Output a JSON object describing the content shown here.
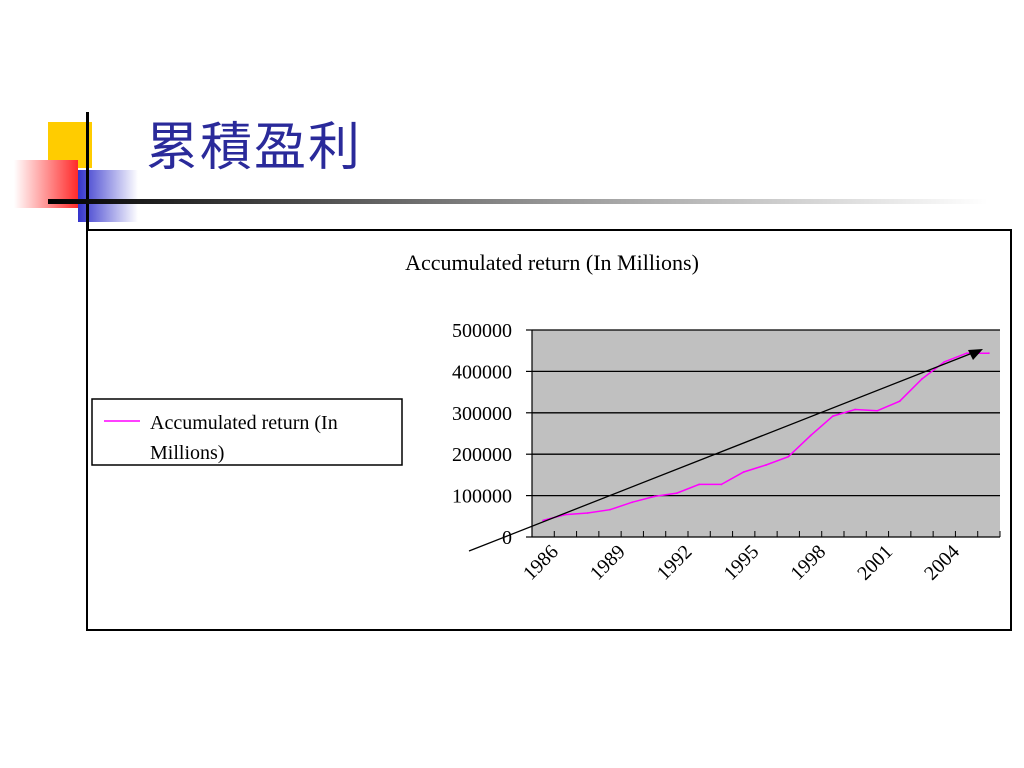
{
  "slide": {
    "title": "累積盈利"
  },
  "colors": {
    "title": "#2a2a9a",
    "accent_yellow": "#ffcc00",
    "accent_blue": "#3333cc",
    "accent_red": "#ff3333",
    "series_line": "#ff00ff",
    "plot_area": "#c0c0c0"
  },
  "chart_data": {
    "type": "line",
    "title": "Accumulated return (In Millions)",
    "xlabel": "",
    "ylabel": "",
    "ylim": [
      0,
      500000
    ],
    "yticks": [
      0,
      100000,
      200000,
      300000,
      400000,
      500000
    ],
    "x": [
      1986,
      1987,
      1988,
      1989,
      1990,
      1991,
      1992,
      1993,
      1994,
      1995,
      1996,
      1997,
      1998,
      1999,
      2000,
      2001,
      2002,
      2003,
      2004,
      2005,
      2006
    ],
    "xtick_labels": [
      "1986",
      "1989",
      "1992",
      "1995",
      "1998",
      "2001",
      "2004"
    ],
    "series": [
      {
        "name": "Accumulated return (In Millions)",
        "color": "#ff00ff",
        "values": [
          40000,
          54000,
          58000,
          66000,
          84000,
          98000,
          106000,
          127000,
          127000,
          157000,
          174000,
          194000,
          245000,
          292000,
          308000,
          305000,
          328000,
          382000,
          423000,
          444000,
          444000
        ]
      }
    ],
    "grid": "horizontal",
    "legend": "left",
    "annotation": "trend arrow"
  }
}
